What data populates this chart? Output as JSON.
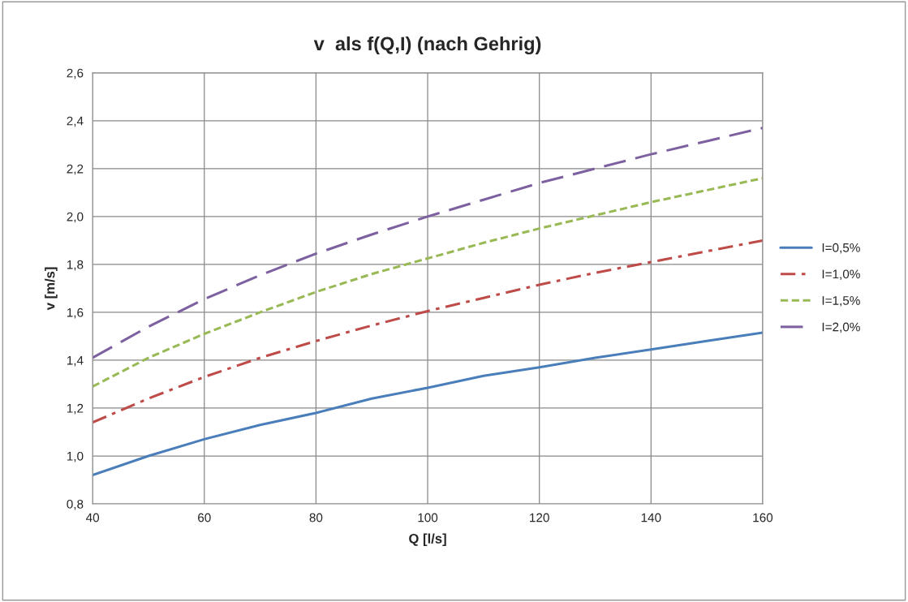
{
  "chart_data": {
    "type": "line",
    "title": "v  als f(Q,I) (nach Gehrig)",
    "xlabel": "Q [l/s]",
    "ylabel": "v [m/s]",
    "x": [
      40,
      50,
      60,
      70,
      80,
      90,
      100,
      110,
      120,
      130,
      140,
      150,
      160
    ],
    "series": [
      {
        "name": "I=0,5%",
        "color": "#4a7ebb",
        "line_style": "solid",
        "values": [
          0.92,
          1.0,
          1.07,
          1.13,
          1.18,
          1.24,
          1.285,
          1.335,
          1.37,
          1.41,
          1.445,
          1.48,
          1.515
        ]
      },
      {
        "name": "I=1,0%",
        "color": "#be4b48",
        "line_style": "dashdot",
        "values": [
          1.14,
          1.24,
          1.33,
          1.41,
          1.48,
          1.545,
          1.605,
          1.66,
          1.715,
          1.765,
          1.81,
          1.855,
          1.9
        ]
      },
      {
        "name": "I=1,5%",
        "color": "#98b954",
        "line_style": "dotted",
        "values": [
          1.29,
          1.41,
          1.51,
          1.6,
          1.685,
          1.76,
          1.825,
          1.89,
          1.95,
          2.005,
          2.06,
          2.11,
          2.16
        ]
      },
      {
        "name": "I=2,0%",
        "color": "#7d60a0",
        "line_style": "dashed",
        "values": [
          1.41,
          1.54,
          1.655,
          1.755,
          1.845,
          1.925,
          2.0,
          2.07,
          2.14,
          2.2,
          2.26,
          2.315,
          2.37
        ]
      }
    ],
    "xlim": [
      40,
      160
    ],
    "xticks": [
      40,
      60,
      80,
      100,
      120,
      140,
      160
    ],
    "ylim": [
      0.8,
      2.6
    ],
    "yticks": [
      {
        "value": 0.8,
        "label": "0,8"
      },
      {
        "value": 1.0,
        "label": "1,0"
      },
      {
        "value": 1.2,
        "label": "1,2"
      },
      {
        "value": 1.4,
        "label": "1,4"
      },
      {
        "value": 1.6,
        "label": "1,6"
      },
      {
        "value": 1.8,
        "label": "1,8"
      },
      {
        "value": 2.0,
        "label": "2,0"
      },
      {
        "value": 2.2,
        "label": "2,2"
      },
      {
        "value": 2.4,
        "label": "2,4"
      },
      {
        "value": 2.6,
        "label": "2,6"
      }
    ],
    "grid": true,
    "legend": "right",
    "marker": "none"
  }
}
